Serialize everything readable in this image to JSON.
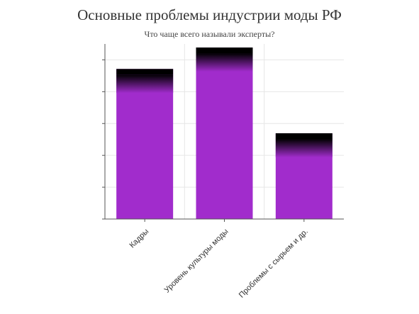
{
  "chart_data": {
    "type": "bar",
    "title": "Основные проблемы индустрии моды РФ",
    "subtitle": "Что чаще всего называли эксперты?",
    "categories": [
      "Кадры",
      "Уровень культуры моды",
      "Проблемы с сырьем и др."
    ],
    "values": [
      210,
      240,
      120
    ],
    "ylim": [
      0,
      245
    ],
    "grid": true,
    "legend": "none",
    "colors": {
      "bar": "#a12ccc",
      "bar_cap": "#000000",
      "axis": "#555555",
      "grid": "#e6e6e6"
    }
  }
}
